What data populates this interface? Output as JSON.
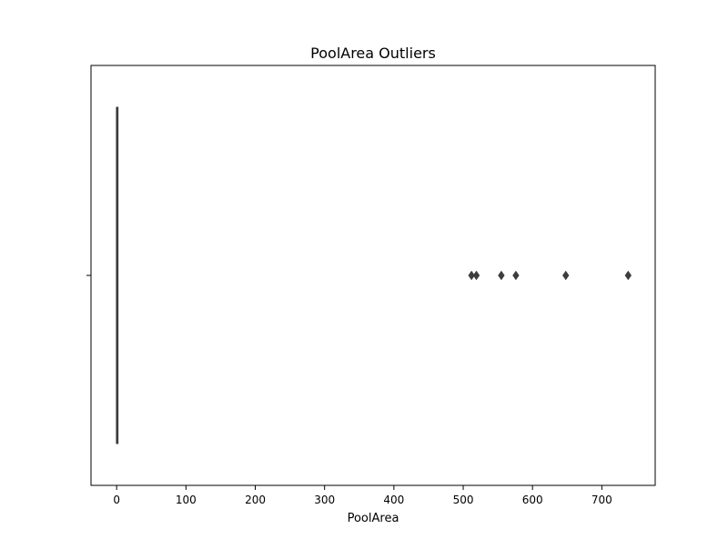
{
  "chart_data": {
    "type": "box",
    "title": "PoolArea Outliers",
    "xlabel": "PoolArea",
    "ylabel": "",
    "orientation": "horizontal",
    "xlim": [
      -37,
      777
    ],
    "x_ticks": [
      0,
      100,
      200,
      300,
      400,
      500,
      600,
      700
    ],
    "grid": false,
    "box": {
      "min": 0,
      "q1": 0,
      "median": 0,
      "q3": 0,
      "max": 0
    },
    "outliers": [
      512,
      519,
      555,
      576,
      648,
      738
    ],
    "colors": {
      "box": "#3d3d3d",
      "outlier": "#3d3d3d",
      "axes": "#000000"
    }
  }
}
